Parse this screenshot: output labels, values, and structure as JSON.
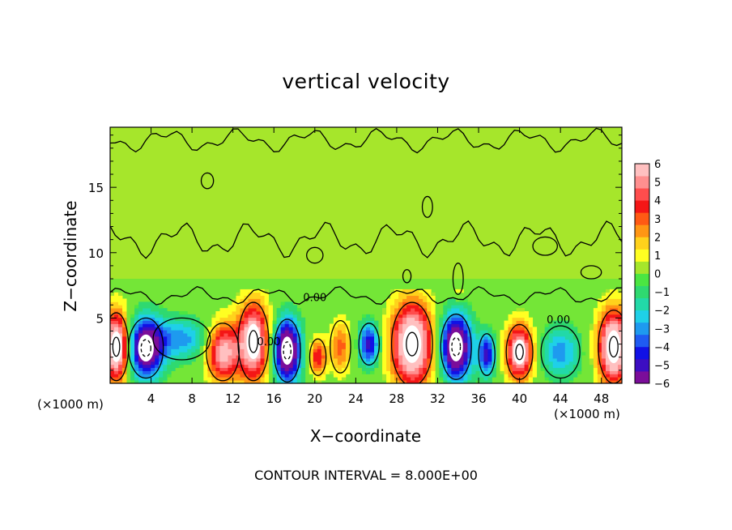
{
  "chart_data": {
    "type": "heatmap",
    "title": "vertical velocity",
    "xlabel": "X−coordinate",
    "ylabel": "Z−coordinate",
    "x_multiplier_label": "(×1000 m)",
    "x_ticks": [
      "4",
      "8",
      "12",
      "16",
      "20",
      "24",
      "28",
      "32",
      "36",
      "40",
      "44",
      "48"
    ],
    "y_ticks": [
      "5",
      "10",
      "15"
    ],
    "xlim": [
      0,
      50
    ],
    "ylim": [
      0,
      19.6
    ],
    "colorbar": {
      "ticks": [
        "6",
        "5",
        "4",
        "3",
        "2",
        "1",
        "0",
        "−1",
        "−2",
        "−3",
        "−4",
        "−5",
        "−6"
      ],
      "range": [
        -6,
        6
      ],
      "colors": [
        "#7b0d9a",
        "#3c0ec2",
        "#1111e6",
        "#1f5bf2",
        "#1e9aef",
        "#1fd0e8",
        "#22d9a8",
        "#2fd970",
        "#4be642",
        "#a6e62b",
        "#ffff22",
        "#ffd21c",
        "#ff9614",
        "#ff5a14",
        "#f41616",
        "#ff4d4d",
        "#ff8f8f",
        "#ffc0c0"
      ]
    },
    "contour_label": "0.00",
    "contour_interval_text": "CONTOUR INTERVAL = 8.000E+00",
    "features": [
      {
        "kind": "updraft",
        "x": 0.6,
        "z": 2.8,
        "rx": 1.2,
        "rz": 2.6,
        "w": 8
      },
      {
        "kind": "downdraft",
        "x": 3.5,
        "z": 2.7,
        "rx": 1.7,
        "rz": 2.3,
        "w": -7
      },
      {
        "kind": "downdraft",
        "x": 7.0,
        "z": 3.4,
        "rx": 2.8,
        "rz": 1.6,
        "w": -3
      },
      {
        "kind": "updraft",
        "x": 11.0,
        "z": 2.4,
        "rx": 1.6,
        "rz": 2.2,
        "w": 6
      },
      {
        "kind": "updraft",
        "x": 14.0,
        "z": 3.2,
        "rx": 1.5,
        "rz": 3.0,
        "w": 7
      },
      {
        "kind": "downdraft",
        "x": 17.3,
        "z": 2.5,
        "rx": 1.3,
        "rz": 2.4,
        "w": -8
      },
      {
        "kind": "updraft",
        "x": 20.3,
        "z": 2.0,
        "rx": 0.8,
        "rz": 1.4,
        "w": 4
      },
      {
        "kind": "updraft",
        "x": 22.5,
        "z": 2.8,
        "rx": 1.0,
        "rz": 2.0,
        "w": 3
      },
      {
        "kind": "downdraft",
        "x": 25.3,
        "z": 3.0,
        "rx": 1.0,
        "rz": 1.6,
        "w": -5
      },
      {
        "kind": "updraft",
        "x": 29.5,
        "z": 3.0,
        "rx": 2.0,
        "rz": 3.2,
        "w": 8
      },
      {
        "kind": "downdraft",
        "x": 33.8,
        "z": 2.8,
        "rx": 1.5,
        "rz": 2.5,
        "w": -8
      },
      {
        "kind": "downdraft",
        "x": 36.8,
        "z": 2.2,
        "rx": 0.8,
        "rz": 1.6,
        "w": -5
      },
      {
        "kind": "updraft",
        "x": 40.0,
        "z": 2.4,
        "rx": 1.3,
        "rz": 2.1,
        "w": 7
      },
      {
        "kind": "downdraft",
        "x": 44.0,
        "z": 2.4,
        "rx": 1.9,
        "rz": 2.0,
        "w": -3
      },
      {
        "kind": "updraft",
        "x": 49.2,
        "z": 2.8,
        "rx": 1.5,
        "rz": 2.8,
        "w": 8
      },
      {
        "kind": "updraft",
        "x": 34.0,
        "z": 8.0,
        "rx": 0.5,
        "rz": 1.2,
        "w": 3
      }
    ]
  }
}
